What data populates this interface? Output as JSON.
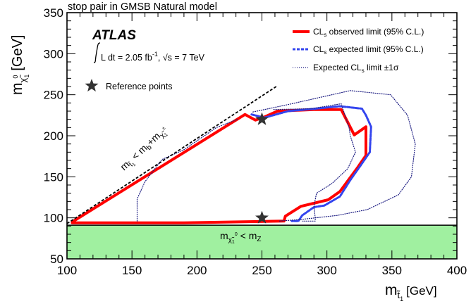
{
  "chart_data": {
    "type": "line",
    "title": "stop pair in GMSB Natural model",
    "experiment": "ATLAS",
    "luminosity_label": "L dt = 2.05 fb",
    "luminosity_sup": "-1",
    "energy_label": ", √s = 7 TeV",
    "xlabel_main": "m",
    "xlabel_sub": "t̃",
    "xlabel_subsub": "1",
    "xlabel_unit": "[GeV]",
    "ylabel_main": "m",
    "ylabel_sub": "χ̃",
    "ylabel_subsub": "1",
    "ylabel_sup": "0",
    "ylabel_unit": "[GeV]",
    "xlim": [
      100,
      400
    ],
    "ylim": [
      50,
      350
    ],
    "xticks": [
      100,
      150,
      200,
      250,
      300,
      350,
      400
    ],
    "yticks": [
      50,
      100,
      150,
      200,
      250,
      300,
      350
    ],
    "grid": false,
    "legend_position": "top-right",
    "series": [
      {
        "name": "CL",
        "name_sub": "s",
        "name_rest": " observed limit (95% C.L.)",
        "color": "#ff0000",
        "style": "solid",
        "points": [
          [
            104,
            95
          ],
          [
            237,
            226
          ],
          [
            245,
            219
          ],
          [
            252,
            223
          ],
          [
            262,
            230
          ],
          [
            290,
            232
          ],
          [
            311,
            232
          ],
          [
            321,
            201
          ],
          [
            330,
            211
          ],
          [
            330,
            176
          ],
          [
            323,
            160
          ],
          [
            310,
            132
          ],
          [
            301,
            122
          ],
          [
            280,
            114
          ],
          [
            268,
            102
          ],
          [
            267,
            96
          ],
          [
            190,
            94
          ],
          [
            104,
            94
          ],
          [
            104,
            95
          ]
        ]
      },
      {
        "name": "CL",
        "name_sub": "s",
        "name_rest": " expected limit (95% C.L.)",
        "color": "#3344ee",
        "style": "dashed",
        "points": [
          [
            242,
            226
          ],
          [
            252,
            222
          ],
          [
            270,
            230
          ],
          [
            291,
            233
          ],
          [
            310,
            236
          ],
          [
            327,
            233
          ],
          [
            330,
            225
          ],
          [
            334,
            211
          ],
          [
            333,
            180
          ],
          [
            326,
            164
          ],
          [
            318,
            146
          ],
          [
            310,
            126
          ],
          [
            298,
            115
          ],
          [
            290,
            113
          ],
          [
            281,
            103
          ],
          [
            278,
            96
          ],
          [
            273,
            96
          ]
        ]
      },
      {
        "name": "Expected CL",
        "name_sub": "s",
        "name_rest": " limit ±1σ",
        "color": "#1a1a80",
        "style": "dotted",
        "points": [
          [
            243,
            229
          ],
          [
            270,
            238
          ],
          [
            318,
            255
          ],
          [
            349,
            250
          ],
          [
            362,
            225
          ],
          [
            368,
            190
          ],
          [
            365,
            150
          ],
          [
            355,
            128
          ],
          [
            331,
            110
          ],
          [
            308,
            103
          ],
          [
            280,
            98
          ],
          [
            263,
            96
          ]
        ]
      },
      {
        "name": "",
        "color": "#1a1a80",
        "style": "dotted",
        "points": [
          [
            154,
            96
          ],
          [
            154,
            123
          ],
          [
            160,
            144
          ],
          [
            173,
            171
          ],
          [
            190,
            183
          ],
          [
            215,
            210
          ],
          [
            231,
            220
          ]
        ]
      },
      {
        "name": "",
        "color": "#1a1a80",
        "style": "dotted",
        "points": [
          [
            259,
            232
          ],
          [
            288,
            233
          ],
          [
            311,
            239
          ],
          [
            317,
            210
          ],
          [
            318,
            200
          ],
          [
            322,
            180
          ],
          [
            316,
            160
          ],
          [
            304,
            142
          ],
          [
            292,
            130
          ],
          [
            290,
            114
          ],
          [
            291,
            100
          ],
          [
            291,
            96
          ],
          [
            281,
            96
          ]
        ]
      }
    ],
    "kinematic_line": {
      "points": [
        [
          100,
          93
        ],
        [
          262,
          261
        ]
      ],
      "color": "#000000",
      "style": "dashed",
      "label": "m",
      "label_sub": "t̃",
      "label_subsub": "1",
      "label_rest": " < m",
      "label_b": "b",
      "label_plus": "+m",
      "label_chi": "χ̃",
      "label_chi_sub": "1",
      "label_chi_sup": "±"
    },
    "mz_boundary": {
      "y": 91,
      "fill_color": "#a0f0a0",
      "label": "m",
      "label_sub": "χ̃",
      "label_subsub": "1",
      "label_sup": "0",
      "label_rest": " < m",
      "label_z": "Z"
    },
    "reference_points": {
      "label": "Reference points",
      "points": [
        [
          250,
          220
        ],
        [
          250,
          100
        ]
      ],
      "color": "#333333"
    }
  }
}
